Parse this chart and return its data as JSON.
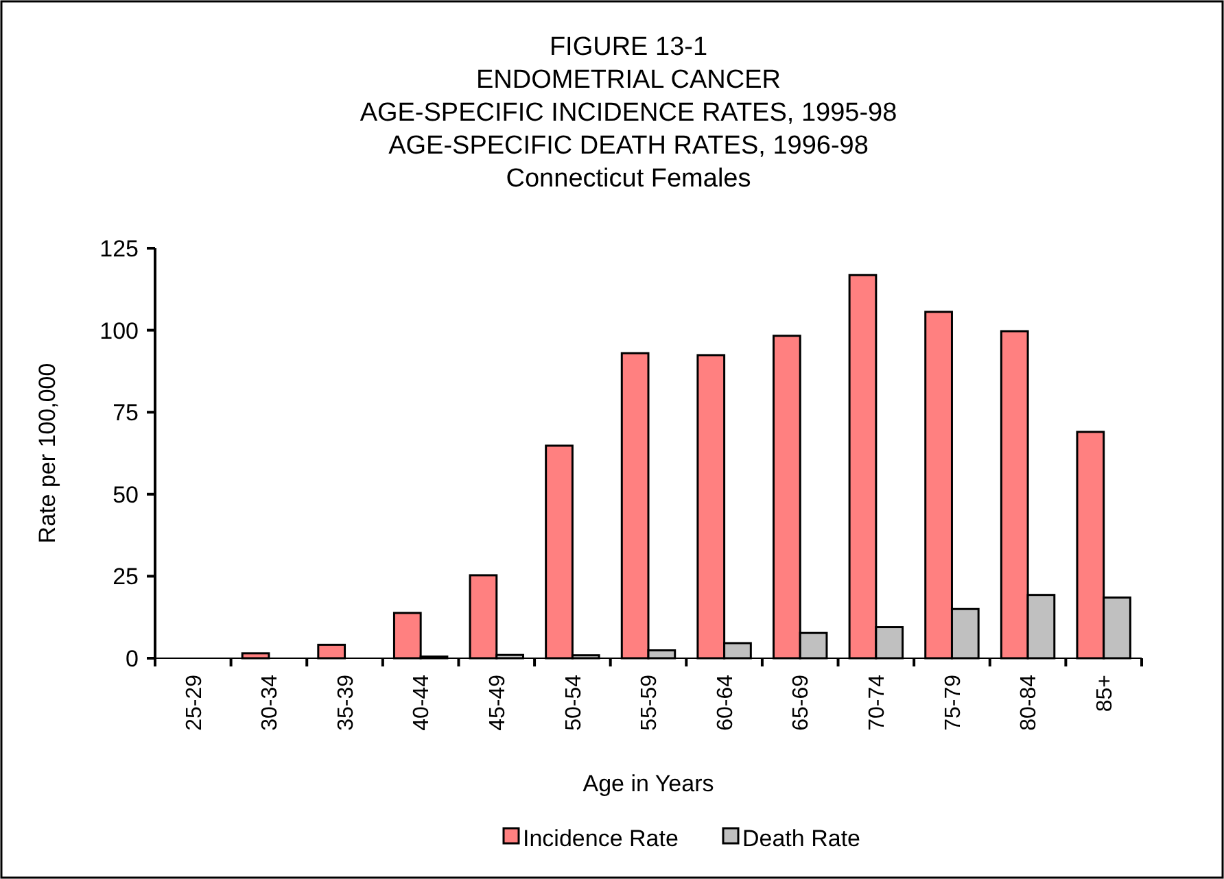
{
  "chart_data": {
    "type": "bar",
    "title": "FIGURE 13-1\nENDOMETRIAL CANCER\nAGE-SPECIFIC INCIDENCE RATES, 1995-98\nAGE-SPECIFIC DEATH RATES, 1996-98\nConnecticut Females",
    "xlabel": "Age in Years",
    "ylabel": "Rate per 100,000",
    "categories": [
      "25-29",
      "30-34",
      "35-39",
      "40-44",
      "45-49",
      "50-54",
      "55-59",
      "60-64",
      "65-69",
      "70-74",
      "75-79",
      "80-84",
      "85+"
    ],
    "series": [
      {
        "name": "Incidence Rate",
        "color": "#ff8080",
        "values": [
          0,
          1.5,
          4.1,
          13.8,
          25.3,
          64.8,
          93.0,
          92.4,
          98.3,
          116.8,
          105.6,
          99.7,
          69.0
        ]
      },
      {
        "name": "Death Rate",
        "color": "#c0c0c0",
        "values": [
          0,
          0,
          0,
          0.5,
          1.0,
          0.9,
          2.4,
          4.6,
          7.7,
          9.5,
          15.0,
          19.3,
          18.5
        ]
      }
    ],
    "ylim": [
      0,
      125
    ],
    "yticks": [
      0,
      25,
      50,
      75,
      100,
      125
    ],
    "grid": false,
    "legend": "bottom"
  }
}
